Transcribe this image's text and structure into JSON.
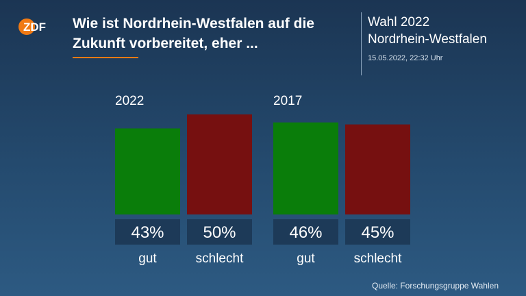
{
  "header": {
    "logo_text": "ZDF",
    "headline": "Wie ist Nordrhein-Westfalen auf die Zukunft vorbereitet, eher ...",
    "event_line1": "Wahl 2022",
    "event_line2": "Nordrhein-Westfalen",
    "timestamp": "15.05.2022, 22:32 Uhr"
  },
  "footer": {
    "source": "Quelle: Forschungsgruppe Wahlen"
  },
  "colors": {
    "gut": "#0a7d0a",
    "schlecht": "#761010",
    "label_box": "#1d3a58",
    "accent": "#f07a14"
  },
  "chart_data": {
    "type": "bar",
    "unit": "%",
    "ylim": [
      0,
      100
    ],
    "categories": [
      "gut",
      "schlecht"
    ],
    "groups": [
      {
        "name": "2022",
        "values": [
          43,
          50
        ]
      },
      {
        "name": "2017",
        "values": [
          46,
          45
        ]
      }
    ],
    "grid": false,
    "legend": "none"
  }
}
